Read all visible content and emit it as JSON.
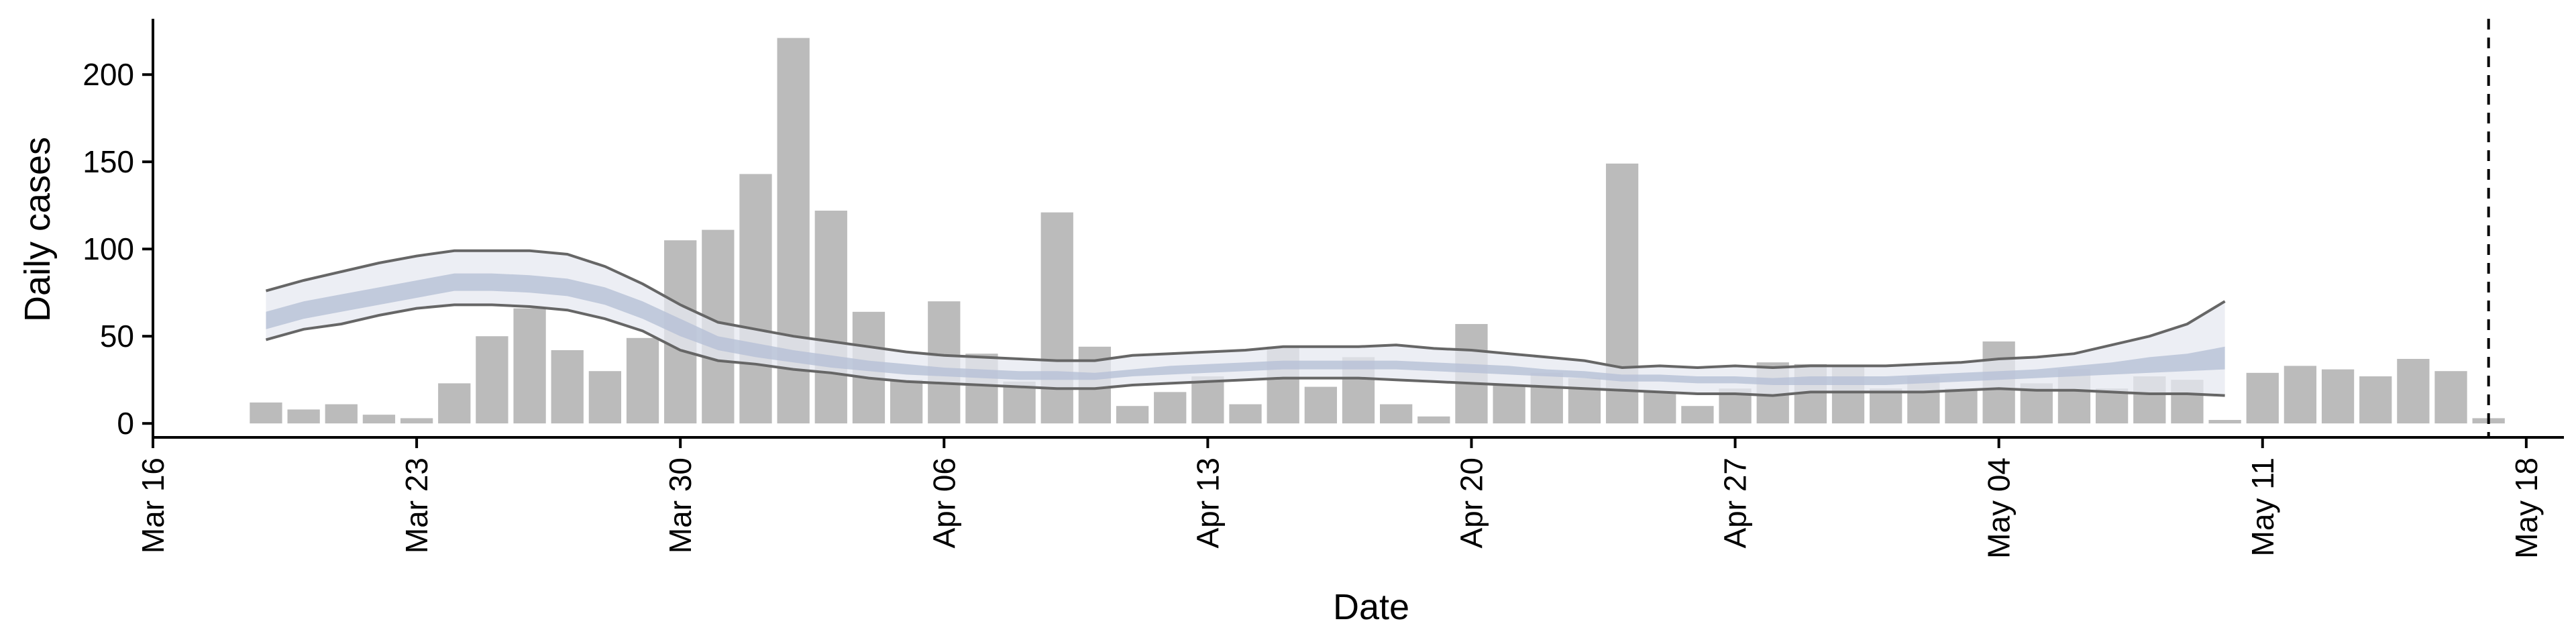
{
  "chart_data": {
    "type": "bar",
    "xlabel": "Date",
    "ylabel": "Daily cases",
    "x_start": "2020-03-16",
    "x_end": "2020-05-19",
    "ylim": [
      -8,
      232
    ],
    "yticks": [
      0,
      50,
      100,
      150,
      200
    ],
    "xticks": [
      {
        "date": "2020-03-16",
        "label": "Mar 16"
      },
      {
        "date": "2020-03-23",
        "label": "Mar 23"
      },
      {
        "date": "2020-03-30",
        "label": "Mar 30"
      },
      {
        "date": "2020-04-06",
        "label": "Apr 06"
      },
      {
        "date": "2020-04-13",
        "label": "Apr 13"
      },
      {
        "date": "2020-04-20",
        "label": "Apr 20"
      },
      {
        "date": "2020-04-27",
        "label": "Apr 27"
      },
      {
        "date": "2020-05-04",
        "label": "May 04"
      },
      {
        "date": "2020-05-11",
        "label": "May 11"
      },
      {
        "date": "2020-05-18",
        "label": "May 18"
      }
    ],
    "grid": false,
    "bar_color": "#bbbbbb",
    "band_outer_color": "#e6e8f0",
    "band_inner_color": "#b7c1d6",
    "band_line_color": "#666666",
    "vline_date": "2020-05-17",
    "bars": {
      "dates": [
        "2020-03-19",
        "2020-03-20",
        "2020-03-21",
        "2020-03-22",
        "2020-03-23",
        "2020-03-24",
        "2020-03-25",
        "2020-03-26",
        "2020-03-27",
        "2020-03-28",
        "2020-03-29",
        "2020-03-30",
        "2020-03-31",
        "2020-04-01",
        "2020-04-02",
        "2020-04-03",
        "2020-04-04",
        "2020-04-05",
        "2020-04-06",
        "2020-04-07",
        "2020-04-08",
        "2020-04-09",
        "2020-04-10",
        "2020-04-11",
        "2020-04-12",
        "2020-04-13",
        "2020-04-14",
        "2020-04-15",
        "2020-04-16",
        "2020-04-17",
        "2020-04-18",
        "2020-04-19",
        "2020-04-20",
        "2020-04-21",
        "2020-04-22",
        "2020-04-23",
        "2020-04-24",
        "2020-04-25",
        "2020-04-26",
        "2020-04-27",
        "2020-04-28",
        "2020-04-29",
        "2020-04-30",
        "2020-05-01",
        "2020-05-02",
        "2020-05-03",
        "2020-05-04",
        "2020-05-05",
        "2020-05-06",
        "2020-05-07",
        "2020-05-08",
        "2020-05-09",
        "2020-05-10",
        "2020-05-11",
        "2020-05-12",
        "2020-05-13",
        "2020-05-14",
        "2020-05-15",
        "2020-05-16",
        "2020-05-17"
      ],
      "values": [
        12,
        8,
        11,
        5,
        3,
        23,
        50,
        66,
        42,
        30,
        49,
        105,
        111,
        143,
        221,
        122,
        64,
        25,
        70,
        40,
        24,
        121,
        44,
        10,
        18,
        27,
        11,
        44,
        21,
        38,
        11,
        4,
        57,
        22,
        29,
        26,
        149,
        18,
        10,
        20,
        35,
        34,
        33,
        20,
        27,
        20,
        47,
        23,
        31,
        20,
        27,
        25,
        2,
        29,
        33,
        31,
        27,
        37,
        30,
        3
      ]
    },
    "band": {
      "dates": [
        "2020-03-19",
        "2020-03-20",
        "2020-03-21",
        "2020-03-22",
        "2020-03-23",
        "2020-03-24",
        "2020-03-25",
        "2020-03-26",
        "2020-03-27",
        "2020-03-28",
        "2020-03-29",
        "2020-03-30",
        "2020-03-31",
        "2020-04-01",
        "2020-04-02",
        "2020-04-03",
        "2020-04-04",
        "2020-04-05",
        "2020-04-06",
        "2020-04-07",
        "2020-04-08",
        "2020-04-09",
        "2020-04-10",
        "2020-04-11",
        "2020-04-12",
        "2020-04-13",
        "2020-04-14",
        "2020-04-15",
        "2020-04-16",
        "2020-04-17",
        "2020-04-18",
        "2020-04-19",
        "2020-04-20",
        "2020-04-21",
        "2020-04-22",
        "2020-04-23",
        "2020-04-24",
        "2020-04-25",
        "2020-04-26",
        "2020-04-27",
        "2020-04-28",
        "2020-04-29",
        "2020-04-30",
        "2020-05-01",
        "2020-05-02",
        "2020-05-03",
        "2020-05-04",
        "2020-05-05",
        "2020-05-06",
        "2020-05-07",
        "2020-05-08",
        "2020-05-09",
        "2020-05-10"
      ],
      "upper90": [
        76,
        82,
        87,
        92,
        96,
        99,
        99,
        99,
        97,
        90,
        80,
        68,
        58,
        54,
        50,
        47,
        44,
        41,
        39,
        38,
        37,
        36,
        36,
        39,
        40,
        41,
        42,
        44,
        44,
        44,
        45,
        43,
        42,
        40,
        38,
        36,
        32,
        33,
        32,
        33,
        32,
        33,
        33,
        33,
        34,
        35,
        37,
        38,
        40,
        45,
        50,
        57,
        70
      ],
      "upper50": [
        64,
        70,
        74,
        78,
        82,
        86,
        86,
        85,
        83,
        78,
        70,
        60,
        50,
        46,
        42,
        39,
        36,
        34,
        32,
        31,
        30,
        30,
        29,
        31,
        33,
        34,
        35,
        36,
        36,
        36,
        36,
        35,
        34,
        33,
        31,
        30,
        28,
        28,
        27,
        27,
        26,
        27,
        27,
        27,
        28,
        29,
        30,
        31,
        33,
        35,
        38,
        40,
        44
      ],
      "lower50": [
        54,
        60,
        64,
        68,
        72,
        76,
        76,
        75,
        73,
        68,
        60,
        50,
        42,
        38,
        35,
        32,
        30,
        28,
        27,
        26,
        25,
        25,
        25,
        27,
        28,
        29,
        30,
        31,
        31,
        31,
        31,
        30,
        29,
        28,
        27,
        26,
        24,
        24,
        23,
        23,
        22,
        22,
        22,
        22,
        23,
        24,
        25,
        26,
        27,
        28,
        29,
        30,
        31
      ],
      "lower90": [
        48,
        54,
        57,
        62,
        66,
        68,
        68,
        67,
        65,
        60,
        53,
        42,
        36,
        34,
        31,
        29,
        26,
        24,
        23,
        22,
        21,
        20,
        20,
        22,
        23,
        24,
        25,
        26,
        26,
        26,
        25,
        24,
        23,
        22,
        21,
        20,
        19,
        18,
        17,
        17,
        16,
        18,
        18,
        18,
        18,
        19,
        20,
        19,
        19,
        18,
        17,
        17,
        16
      ]
    }
  }
}
